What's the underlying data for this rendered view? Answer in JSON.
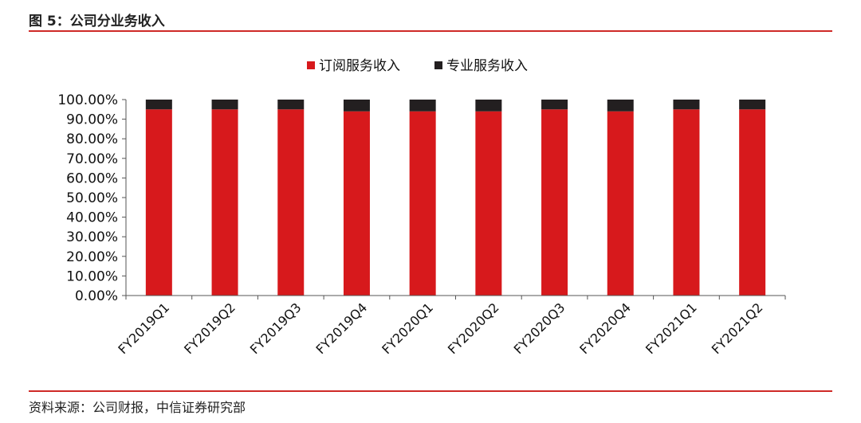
{
  "header": {
    "figure_title": "图 5：公司分业务收入"
  },
  "footer": {
    "source": "资料来源：公司财报，中信证券研究部"
  },
  "chart_data": {
    "type": "bar",
    "stacked": true,
    "percent": true,
    "categories": [
      "FY2019Q1",
      "FY2019Q2",
      "FY2019Q3",
      "FY2019Q4",
      "FY2020Q1",
      "FY2020Q2",
      "FY2020Q3",
      "FY2020Q4",
      "FY2021Q1",
      "FY2021Q2"
    ],
    "series": [
      {
        "name": "订阅服务收入",
        "color": "#d7191c",
        "values": [
          95.0,
          95.0,
          95.0,
          94.0,
          94.0,
          94.0,
          95.0,
          94.0,
          95.0,
          95.0
        ]
      },
      {
        "name": "专业服务收入",
        "color": "#231f20",
        "values": [
          5.0,
          5.0,
          5.0,
          6.0,
          6.0,
          6.0,
          5.0,
          6.0,
          5.0,
          5.0
        ]
      }
    ],
    "ylim": [
      0,
      100
    ],
    "yticks": [
      "0.00%",
      "10.00%",
      "20.00%",
      "30.00%",
      "40.00%",
      "50.00%",
      "60.00%",
      "70.00%",
      "80.00%",
      "90.00%",
      "100.00%"
    ],
    "legend_position": "top",
    "grid": false
  }
}
